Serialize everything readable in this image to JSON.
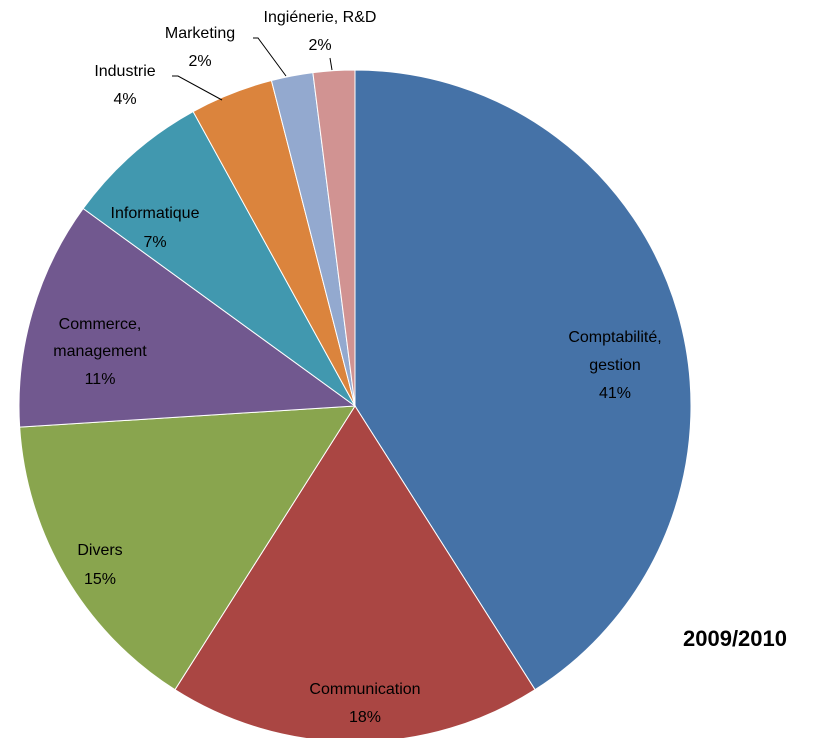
{
  "chart_data": {
    "type": "pie",
    "title": "2009/2010",
    "categories": [
      "Comptabilité, gestion",
      "Communication",
      "Divers",
      "Commerce, management",
      "Informatique",
      "Industrie",
      "Marketing",
      "Ingiénerie, R&D"
    ],
    "values": [
      41,
      18,
      15,
      11,
      7,
      4,
      2,
      2
    ],
    "value_labels": [
      "41%",
      "18%",
      "15%",
      "11%",
      "7%",
      "4%",
      "2%",
      "2%"
    ],
    "colors": [
      "#4572a7",
      "#aa4643",
      "#89a54e",
      "#71588f",
      "#4198af",
      "#db843d",
      "#93a9cf",
      "#d19392"
    ]
  }
}
